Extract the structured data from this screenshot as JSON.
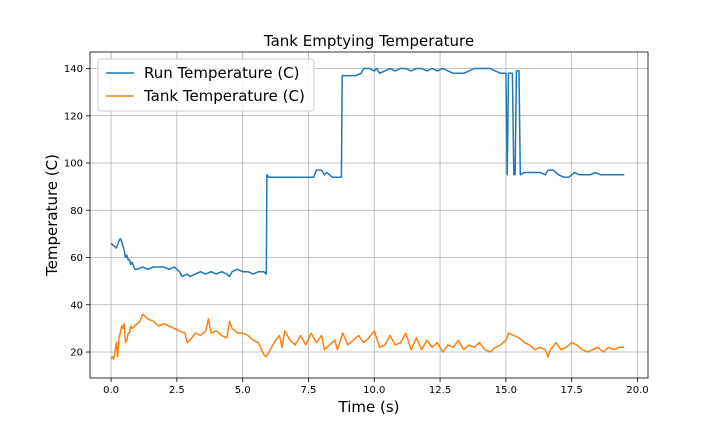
{
  "chart_data": {
    "type": "line",
    "title": "Tank Emptying Temperature",
    "xlabel": "Time (s)",
    "ylabel": "Temperature (C)",
    "xlim": [
      -0.8,
      20.4
    ],
    "ylim": [
      9,
      147
    ],
    "xticks": [
      0.0,
      2.5,
      5.0,
      7.5,
      10.0,
      12.5,
      15.0,
      17.5,
      20.0
    ],
    "xtick_labels": [
      "0.0",
      "2.5",
      "5.0",
      "7.5",
      "10.0",
      "12.5",
      "15.0",
      "17.5",
      "20.0"
    ],
    "yticks": [
      20,
      40,
      60,
      80,
      100,
      120,
      140
    ],
    "ytick_labels": [
      "20",
      "40",
      "60",
      "80",
      "100",
      "120",
      "140"
    ],
    "grid": true,
    "legend_position": "top-left",
    "series": [
      {
        "name": "Run Temperature (C)",
        "color": "#1f77b4",
        "points": [
          [
            0.0,
            66
          ],
          [
            0.1,
            65
          ],
          [
            0.2,
            64
          ],
          [
            0.3,
            67
          ],
          [
            0.35,
            68
          ],
          [
            0.4,
            67
          ],
          [
            0.45,
            65
          ],
          [
            0.5,
            63
          ],
          [
            0.55,
            60
          ],
          [
            0.6,
            61
          ],
          [
            0.65,
            59
          ],
          [
            0.7,
            59
          ],
          [
            0.75,
            57
          ],
          [
            0.8,
            58
          ],
          [
            0.9,
            55
          ],
          [
            1.0,
            55
          ],
          [
            1.2,
            56
          ],
          [
            1.4,
            55
          ],
          [
            1.6,
            56
          ],
          [
            1.8,
            56
          ],
          [
            2.0,
            56
          ],
          [
            2.2,
            55
          ],
          [
            2.4,
            56
          ],
          [
            2.5,
            55
          ],
          [
            2.6,
            54
          ],
          [
            2.7,
            52
          ],
          [
            2.9,
            53
          ],
          [
            3.0,
            52
          ],
          [
            3.2,
            53
          ],
          [
            3.4,
            54
          ],
          [
            3.6,
            53
          ],
          [
            3.8,
            54
          ],
          [
            4.0,
            53
          ],
          [
            4.2,
            54
          ],
          [
            4.4,
            53
          ],
          [
            4.5,
            52
          ],
          [
            4.6,
            54
          ],
          [
            4.8,
            55
          ],
          [
            5.0,
            54
          ],
          [
            5.2,
            54
          ],
          [
            5.4,
            53
          ],
          [
            5.6,
            54
          ],
          [
            5.8,
            54
          ],
          [
            5.9,
            53
          ],
          [
            5.92,
            95
          ],
          [
            6.0,
            94
          ],
          [
            6.3,
            94
          ],
          [
            6.6,
            94
          ],
          [
            6.9,
            94
          ],
          [
            7.2,
            94
          ],
          [
            7.5,
            94
          ],
          [
            7.7,
            94
          ],
          [
            7.8,
            97
          ],
          [
            8.0,
            97
          ],
          [
            8.1,
            95
          ],
          [
            8.2,
            96
          ],
          [
            8.4,
            94
          ],
          [
            8.6,
            94
          ],
          [
            8.75,
            94
          ],
          [
            8.78,
            137
          ],
          [
            9.0,
            137
          ],
          [
            9.3,
            137
          ],
          [
            9.5,
            138
          ],
          [
            9.6,
            140
          ],
          [
            9.8,
            140
          ],
          [
            10.0,
            139
          ],
          [
            10.1,
            140
          ],
          [
            10.2,
            138
          ],
          [
            10.4,
            139
          ],
          [
            10.6,
            140
          ],
          [
            10.8,
            139
          ],
          [
            11.0,
            140
          ],
          [
            11.2,
            140
          ],
          [
            11.4,
            139
          ],
          [
            11.6,
            140
          ],
          [
            11.8,
            140
          ],
          [
            12.0,
            139
          ],
          [
            12.2,
            140
          ],
          [
            12.4,
            139
          ],
          [
            12.6,
            140
          ],
          [
            12.8,
            139
          ],
          [
            13.0,
            138
          ],
          [
            13.2,
            138
          ],
          [
            13.4,
            138
          ],
          [
            13.6,
            139
          ],
          [
            13.8,
            140
          ],
          [
            14.0,
            140
          ],
          [
            14.2,
            140
          ],
          [
            14.4,
            140
          ],
          [
            14.6,
            139
          ],
          [
            14.8,
            138
          ],
          [
            15.0,
            138
          ],
          [
            15.05,
            95
          ],
          [
            15.1,
            138
          ],
          [
            15.25,
            138
          ],
          [
            15.3,
            95
          ],
          [
            15.35,
            95
          ],
          [
            15.4,
            139
          ],
          [
            15.5,
            139
          ],
          [
            15.55,
            95
          ],
          [
            15.7,
            96
          ],
          [
            16.0,
            96
          ],
          [
            16.3,
            96
          ],
          [
            16.5,
            95
          ],
          [
            16.6,
            97
          ],
          [
            16.8,
            97
          ],
          [
            17.0,
            95
          ],
          [
            17.2,
            94
          ],
          [
            17.4,
            94
          ],
          [
            17.6,
            96
          ],
          [
            17.8,
            95
          ],
          [
            18.0,
            95
          ],
          [
            18.2,
            95
          ],
          [
            18.4,
            96
          ],
          [
            18.6,
            95
          ],
          [
            18.8,
            95
          ],
          [
            19.0,
            95
          ],
          [
            19.2,
            95
          ],
          [
            19.4,
            95
          ],
          [
            19.5,
            95
          ]
        ]
      },
      {
        "name": "Tank Temperature (C)",
        "color": "#ff7f0e",
        "points": [
          [
            0.0,
            17
          ],
          [
            0.05,
            18
          ],
          [
            0.1,
            17
          ],
          [
            0.15,
            20
          ],
          [
            0.2,
            24
          ],
          [
            0.25,
            18
          ],
          [
            0.3,
            26
          ],
          [
            0.35,
            28
          ],
          [
            0.4,
            31
          ],
          [
            0.45,
            30
          ],
          [
            0.5,
            32
          ],
          [
            0.55,
            24
          ],
          [
            0.6,
            25
          ],
          [
            0.65,
            28
          ],
          [
            0.7,
            28
          ],
          [
            0.75,
            31
          ],
          [
            0.8,
            30
          ],
          [
            0.9,
            31
          ],
          [
            1.0,
            32
          ],
          [
            1.1,
            33
          ],
          [
            1.2,
            36
          ],
          [
            1.3,
            35
          ],
          [
            1.4,
            34
          ],
          [
            1.6,
            33
          ],
          [
            1.8,
            31
          ],
          [
            2.0,
            32
          ],
          [
            2.2,
            31
          ],
          [
            2.4,
            30
          ],
          [
            2.6,
            29
          ],
          [
            2.8,
            28
          ],
          [
            2.9,
            24
          ],
          [
            3.0,
            25
          ],
          [
            3.2,
            28
          ],
          [
            3.4,
            27
          ],
          [
            3.6,
            29
          ],
          [
            3.7,
            34
          ],
          [
            3.8,
            28
          ],
          [
            4.0,
            29
          ],
          [
            4.2,
            27
          ],
          [
            4.4,
            26
          ],
          [
            4.5,
            33
          ],
          [
            4.6,
            30
          ],
          [
            4.8,
            28
          ],
          [
            5.0,
            28
          ],
          [
            5.2,
            27
          ],
          [
            5.4,
            25
          ],
          [
            5.6,
            24
          ],
          [
            5.8,
            19
          ],
          [
            5.9,
            18
          ],
          [
            6.0,
            20
          ],
          [
            6.2,
            24
          ],
          [
            6.4,
            27
          ],
          [
            6.5,
            22
          ],
          [
            6.6,
            29
          ],
          [
            6.8,
            25
          ],
          [
            7.0,
            23
          ],
          [
            7.2,
            27
          ],
          [
            7.4,
            23
          ],
          [
            7.6,
            28
          ],
          [
            7.8,
            24
          ],
          [
            8.0,
            27
          ],
          [
            8.1,
            21
          ],
          [
            8.3,
            23
          ],
          [
            8.5,
            25
          ],
          [
            8.6,
            21
          ],
          [
            8.8,
            28
          ],
          [
            9.0,
            23
          ],
          [
            9.2,
            25
          ],
          [
            9.4,
            27
          ],
          [
            9.6,
            24
          ],
          [
            9.8,
            26
          ],
          [
            10.0,
            29
          ],
          [
            10.2,
            22
          ],
          [
            10.4,
            23
          ],
          [
            10.6,
            27
          ],
          [
            10.8,
            23
          ],
          [
            11.0,
            24
          ],
          [
            11.2,
            28
          ],
          [
            11.4,
            21
          ],
          [
            11.6,
            26
          ],
          [
            11.8,
            21
          ],
          [
            12.0,
            25
          ],
          [
            12.2,
            22
          ],
          [
            12.4,
            24
          ],
          [
            12.6,
            20
          ],
          [
            12.8,
            23
          ],
          [
            13.0,
            22
          ],
          [
            13.2,
            25
          ],
          [
            13.4,
            21
          ],
          [
            13.6,
            23
          ],
          [
            13.8,
            22
          ],
          [
            14.0,
            24
          ],
          [
            14.2,
            21
          ],
          [
            14.4,
            20
          ],
          [
            14.6,
            22
          ],
          [
            14.8,
            23
          ],
          [
            15.0,
            25
          ],
          [
            15.1,
            28
          ],
          [
            15.3,
            27
          ],
          [
            15.5,
            26
          ],
          [
            15.7,
            24
          ],
          [
            15.9,
            23
          ],
          [
            16.1,
            21
          ],
          [
            16.3,
            22
          ],
          [
            16.5,
            21
          ],
          [
            16.6,
            18
          ],
          [
            16.7,
            21
          ],
          [
            16.9,
            24
          ],
          [
            17.1,
            21
          ],
          [
            17.3,
            22
          ],
          [
            17.5,
            24
          ],
          [
            17.7,
            23
          ],
          [
            17.9,
            21
          ],
          [
            18.1,
            20
          ],
          [
            18.3,
            21
          ],
          [
            18.5,
            22
          ],
          [
            18.7,
            20
          ],
          [
            18.9,
            22
          ],
          [
            19.1,
            21
          ],
          [
            19.3,
            22
          ],
          [
            19.5,
            22
          ]
        ]
      }
    ]
  }
}
